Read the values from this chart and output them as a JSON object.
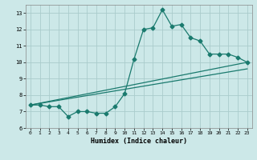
{
  "xlabel": "Humidex (Indice chaleur)",
  "bg_color": "#cce8e8",
  "grid_color": "#aacccc",
  "line_color": "#1a7a6e",
  "xlim": [
    -0.5,
    23.5
  ],
  "ylim": [
    6.0,
    13.5
  ],
  "xticks": [
    0,
    1,
    2,
    3,
    4,
    5,
    6,
    7,
    8,
    9,
    10,
    11,
    12,
    13,
    14,
    15,
    16,
    17,
    18,
    19,
    20,
    21,
    22,
    23
  ],
  "yticks": [
    6,
    7,
    8,
    9,
    10,
    11,
    12,
    13
  ],
  "line1_x": [
    0,
    1,
    2,
    3,
    4,
    5,
    6,
    7,
    8,
    9,
    10,
    11,
    12,
    13,
    14,
    15,
    16,
    17,
    18,
    19,
    20,
    21,
    22,
    23
  ],
  "line1_y": [
    7.4,
    7.4,
    7.3,
    7.3,
    6.7,
    7.0,
    7.0,
    6.9,
    6.9,
    7.3,
    8.1,
    10.2,
    12.0,
    12.1,
    13.2,
    12.2,
    12.3,
    11.5,
    11.3,
    10.5,
    10.5,
    10.5,
    10.3,
    10.0
  ],
  "line2_x": [
    0,
    23
  ],
  "line2_y": [
    7.4,
    10.0
  ],
  "line3_x": [
    0,
    23
  ],
  "line3_y": [
    7.4,
    9.6
  ],
  "markersize": 2.5,
  "linewidth": 0.9
}
